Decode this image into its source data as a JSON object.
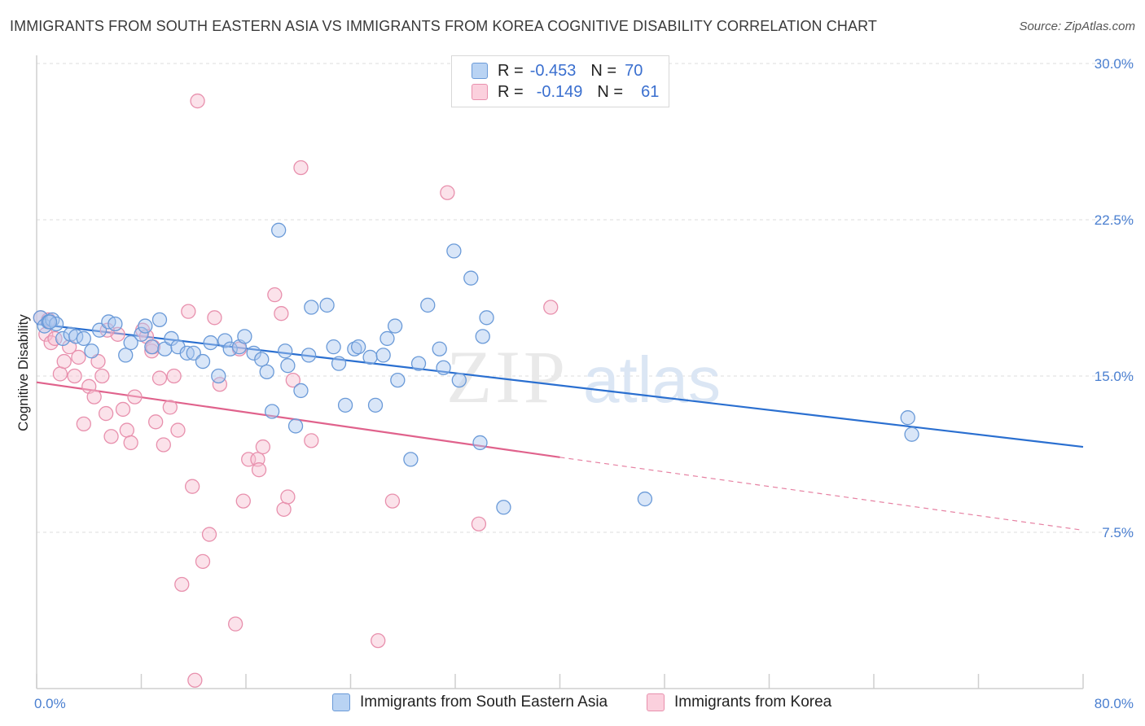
{
  "title": "IMMIGRANTS FROM SOUTH EASTERN ASIA VS IMMIGRANTS FROM KOREA COGNITIVE DISABILITY CORRELATION CHART",
  "source": "Source: ZipAtlas.com",
  "watermark": {
    "zip": "ZIP",
    "atlas": "atlas"
  },
  "legend": {
    "r_label": "R =",
    "n_label": "N =",
    "rows": [
      {
        "r": "-0.453",
        "n": "70"
      },
      {
        "r": "-0.149",
        "n": "61"
      }
    ]
  },
  "colors": {
    "blue_fill": "#aac8f0",
    "blue_stroke": "#6a9ad8",
    "blue_line": "#2a6fd0",
    "pink_fill": "#f6bfd0",
    "pink_stroke": "#e890ad",
    "pink_line": "#e0628c",
    "axis_text": "#4a7fd0"
  },
  "chart_data": {
    "type": "scatter",
    "title": "IMMIGRANTS FROM SOUTH EASTERN ASIA VS IMMIGRANTS FROM KOREA COGNITIVE DISABILITY CORRELATION CHART",
    "xlabel": "",
    "ylabel": "Cognitive Disability",
    "xlim": [
      0,
      80
    ],
    "ylim": [
      0,
      30
    ],
    "x_tick_labels": [
      "0.0%",
      "80.0%"
    ],
    "y_ticks": [
      7.5,
      15.0,
      22.5,
      30.0
    ],
    "y_tick_labels": [
      "7.5%",
      "15.0%",
      "22.5%",
      "30.0%"
    ],
    "grid": "horizontal dashed",
    "legend_position": "top-center",
    "series": [
      {
        "name": "Immigrants from South Eastern Asia",
        "color": "#6a9ad8",
        "points": [
          [
            0.3,
            17.8
          ],
          [
            0.6,
            17.4
          ],
          [
            0.9,
            17.6
          ],
          [
            1.2,
            17.7
          ],
          [
            1.5,
            17.5
          ],
          [
            2.0,
            16.8
          ],
          [
            2.6,
            17.0
          ],
          [
            3.0,
            16.9
          ],
          [
            3.6,
            16.8
          ],
          [
            4.2,
            16.2
          ],
          [
            4.8,
            17.2
          ],
          [
            5.5,
            17.6
          ],
          [
            6.0,
            17.5
          ],
          [
            6.8,
            16.0
          ],
          [
            7.2,
            16.6
          ],
          [
            8.0,
            17.0
          ],
          [
            8.3,
            17.4
          ],
          [
            8.8,
            16.4
          ],
          [
            9.4,
            17.7
          ],
          [
            9.8,
            16.3
          ],
          [
            10.3,
            16.8
          ],
          [
            10.8,
            16.4
          ],
          [
            11.5,
            16.1
          ],
          [
            12.0,
            16.1
          ],
          [
            12.7,
            15.7
          ],
          [
            13.3,
            16.6
          ],
          [
            13.9,
            15.0
          ],
          [
            14.4,
            16.7
          ],
          [
            14.8,
            16.3
          ],
          [
            15.5,
            16.4
          ],
          [
            15.9,
            16.9
          ],
          [
            16.6,
            16.1
          ],
          [
            17.2,
            15.8
          ],
          [
            17.6,
            15.2
          ],
          [
            18.0,
            13.3
          ],
          [
            18.5,
            22.0
          ],
          [
            19.0,
            16.2
          ],
          [
            19.2,
            15.5
          ],
          [
            19.8,
            12.6
          ],
          [
            20.2,
            14.3
          ],
          [
            20.8,
            16.0
          ],
          [
            21.0,
            18.3
          ],
          [
            22.2,
            18.4
          ],
          [
            22.7,
            16.4
          ],
          [
            23.1,
            15.6
          ],
          [
            23.6,
            13.6
          ],
          [
            24.3,
            16.3
          ],
          [
            24.6,
            16.4
          ],
          [
            25.5,
            15.9
          ],
          [
            25.9,
            13.6
          ],
          [
            26.5,
            16.0
          ],
          [
            26.8,
            16.8
          ],
          [
            27.4,
            17.4
          ],
          [
            27.6,
            14.8
          ],
          [
            29.2,
            15.6
          ],
          [
            29.9,
            18.4
          ],
          [
            30.8,
            16.3
          ],
          [
            31.1,
            15.4
          ],
          [
            31.9,
            21.0
          ],
          [
            32.3,
            14.8
          ],
          [
            33.2,
            19.7
          ],
          [
            34.4,
            17.8
          ],
          [
            34.1,
            16.9
          ],
          [
            33.9,
            11.8
          ],
          [
            28.6,
            11.0
          ],
          [
            35.7,
            8.7
          ],
          [
            46.5,
            9.1
          ],
          [
            66.6,
            13.0
          ],
          [
            66.9,
            12.2
          ],
          [
            1.0,
            17.6
          ]
        ],
        "trend": {
          "x0": 0,
          "y0": 17.5,
          "x1": 80,
          "y1": 11.6
        }
      },
      {
        "name": "Immigrants from Korea",
        "color": "#e890ad",
        "points": [
          [
            0.3,
            17.8
          ],
          [
            0.7,
            17.0
          ],
          [
            1.1,
            16.6
          ],
          [
            1.4,
            16.8
          ],
          [
            1.8,
            15.1
          ],
          [
            2.1,
            15.7
          ],
          [
            2.5,
            16.4
          ],
          [
            2.9,
            15.0
          ],
          [
            3.2,
            15.9
          ],
          [
            3.6,
            12.7
          ],
          [
            4.0,
            14.5
          ],
          [
            4.4,
            14.0
          ],
          [
            4.7,
            15.7
          ],
          [
            5.0,
            15.0
          ],
          [
            5.3,
            13.2
          ],
          [
            5.7,
            12.1
          ],
          [
            6.2,
            17.0
          ],
          [
            6.6,
            13.4
          ],
          [
            6.9,
            12.4
          ],
          [
            7.2,
            11.8
          ],
          [
            7.5,
            14.0
          ],
          [
            8.1,
            17.2
          ],
          [
            8.4,
            16.9
          ],
          [
            8.8,
            16.2
          ],
          [
            9.1,
            12.8
          ],
          [
            9.4,
            14.9
          ],
          [
            9.7,
            11.7
          ],
          [
            10.2,
            13.5
          ],
          [
            10.5,
            15.0
          ],
          [
            10.8,
            12.4
          ],
          [
            11.1,
            5.0
          ],
          [
            11.6,
            18.1
          ],
          [
            11.9,
            9.7
          ],
          [
            12.1,
            0.4
          ],
          [
            12.3,
            28.2
          ],
          [
            12.7,
            6.1
          ],
          [
            13.2,
            7.4
          ],
          [
            13.6,
            17.8
          ],
          [
            14.0,
            14.6
          ],
          [
            15.2,
            3.1
          ],
          [
            15.5,
            16.3
          ],
          [
            15.8,
            9.0
          ],
          [
            16.2,
            11.0
          ],
          [
            16.9,
            11.0
          ],
          [
            17.0,
            10.5
          ],
          [
            17.3,
            11.6
          ],
          [
            18.2,
            18.9
          ],
          [
            18.7,
            18.0
          ],
          [
            18.9,
            8.6
          ],
          [
            19.2,
            9.2
          ],
          [
            19.6,
            14.8
          ],
          [
            20.2,
            25.0
          ],
          [
            21.0,
            11.9
          ],
          [
            26.1,
            2.3
          ],
          [
            27.2,
            9.0
          ],
          [
            31.4,
            23.8
          ],
          [
            33.8,
            7.9
          ],
          [
            39.3,
            18.3
          ],
          [
            0.9,
            17.7
          ],
          [
            5.4,
            17.2
          ],
          [
            8.9,
            16.4
          ]
        ],
        "trend": {
          "x0": 0,
          "y0": 14.7,
          "x1": 40,
          "y1": 11.1
        },
        "trend_extension": {
          "x0": 40,
          "y0": 11.1,
          "x1": 80,
          "y1": 7.6
        }
      }
    ]
  }
}
